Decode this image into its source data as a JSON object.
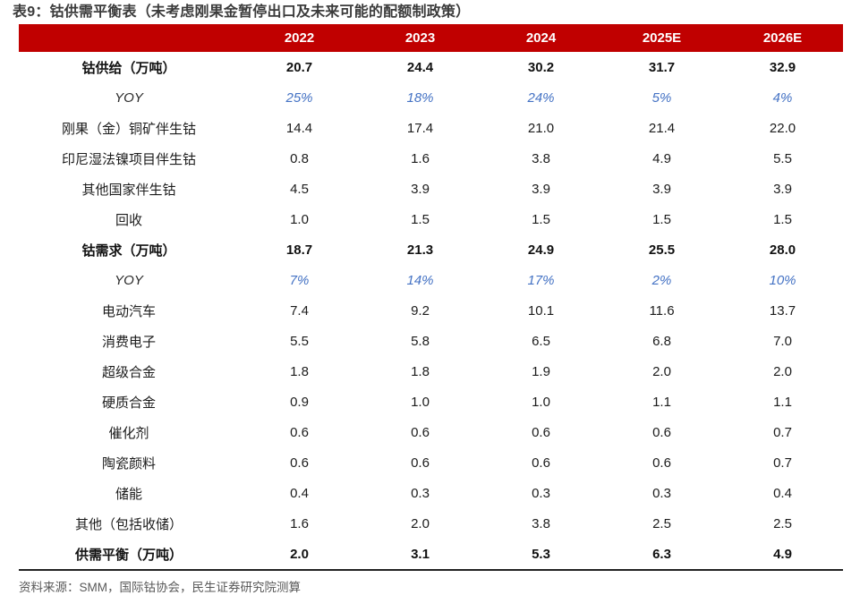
{
  "page": {
    "title": "表9：钴供需平衡表（未考虑刚果金暂停出口及未来可能的配额制政策）",
    "source": "资料来源：SMM，国际钴协会，民生证券研究院测算"
  },
  "colors": {
    "header_bg": "#C00000",
    "header_text": "#FFFFFF",
    "yoy_blue": "#4472C4",
    "title_color": "#3B3B3B",
    "source_gray": "#595959",
    "bottom_rule": "#222222"
  },
  "table": {
    "label_column_header": "",
    "columns": [
      "2022",
      "2023",
      "2024",
      "2025E",
      "2026E"
    ],
    "rows": [
      {
        "label": "钴供给（万吨）",
        "style": "total",
        "values": [
          "20.7",
          "24.4",
          "30.2",
          "31.7",
          "32.9"
        ]
      },
      {
        "label": "YOY",
        "style": "yoy",
        "values": [
          "25%",
          "18%",
          "24%",
          "5%",
          "4%"
        ]
      },
      {
        "label": "刚果（金）铜矿伴生钴",
        "style": "item",
        "values": [
          "14.4",
          "17.4",
          "21.0",
          "21.4",
          "22.0"
        ]
      },
      {
        "label": "印尼湿法镍项目伴生钴",
        "style": "item",
        "values": [
          "0.8",
          "1.6",
          "3.8",
          "4.9",
          "5.5"
        ]
      },
      {
        "label": "其他国家伴生钴",
        "style": "item",
        "values": [
          "4.5",
          "3.9",
          "3.9",
          "3.9",
          "3.9"
        ]
      },
      {
        "label": "回收",
        "style": "item",
        "values": [
          "1.0",
          "1.5",
          "1.5",
          "1.5",
          "1.5"
        ]
      },
      {
        "label": "钴需求（万吨）",
        "style": "total",
        "values": [
          "18.7",
          "21.3",
          "24.9",
          "25.5",
          "28.0"
        ]
      },
      {
        "label": "YOY",
        "style": "yoy",
        "values": [
          "7%",
          "14%",
          "17%",
          "2%",
          "10%"
        ]
      },
      {
        "label": "电动汽车",
        "style": "item",
        "values": [
          "7.4",
          "9.2",
          "10.1",
          "11.6",
          "13.7"
        ]
      },
      {
        "label": "消费电子",
        "style": "item",
        "values": [
          "5.5",
          "5.8",
          "6.5",
          "6.8",
          "7.0"
        ]
      },
      {
        "label": "超级合金",
        "style": "item",
        "values": [
          "1.8",
          "1.8",
          "1.9",
          "2.0",
          "2.0"
        ]
      },
      {
        "label": "硬质合金",
        "style": "item",
        "values": [
          "0.9",
          "1.0",
          "1.0",
          "1.1",
          "1.1"
        ]
      },
      {
        "label": "催化剂",
        "style": "item",
        "values": [
          "0.6",
          "0.6",
          "0.6",
          "0.6",
          "0.7"
        ]
      },
      {
        "label": "陶瓷颜料",
        "style": "item",
        "values": [
          "0.6",
          "0.6",
          "0.6",
          "0.6",
          "0.7"
        ]
      },
      {
        "label": "储能",
        "style": "item",
        "values": [
          "0.4",
          "0.3",
          "0.3",
          "0.3",
          "0.4"
        ]
      },
      {
        "label": "其他（包括收储）",
        "style": "item",
        "values": [
          "1.6",
          "2.0",
          "3.8",
          "2.5",
          "2.5"
        ]
      },
      {
        "label": "供需平衡（万吨）",
        "style": "total",
        "values": [
          "2.0",
          "3.1",
          "5.3",
          "6.3",
          "4.9"
        ]
      }
    ]
  }
}
